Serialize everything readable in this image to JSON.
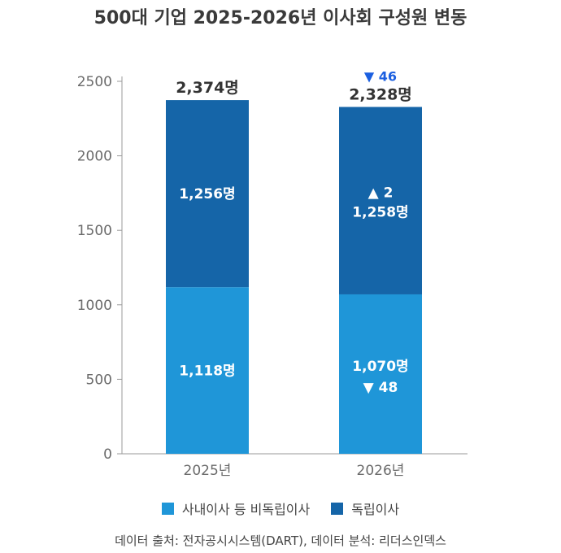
{
  "title": "500대 기업 2025-2026년 이사회 구성원 변동",
  "colors": {
    "inside": "#1f96d8",
    "independent": "#1565a8",
    "axis": "#9a9a9a",
    "delta": "#1b5fe0"
  },
  "chart_data": {
    "type": "bar",
    "stacked": true,
    "categories": [
      "2025년",
      "2026년"
    ],
    "series": [
      {
        "name": "사내이사 등 비독립이사",
        "values": [
          1118,
          1070
        ],
        "labels": [
          "1,118명",
          "1,070명"
        ],
        "deltas": [
          "",
          "▼ 48"
        ],
        "color": "#1f96d8"
      },
      {
        "name": "독립이사",
        "values": [
          1256,
          1258
        ],
        "labels": [
          "1,256명",
          "1,258명"
        ],
        "deltas": [
          "",
          "▲ 2"
        ],
        "color": "#1565a8"
      }
    ],
    "totals": [
      2374,
      2328
    ],
    "total_labels": [
      "2,374명",
      "2,328명"
    ],
    "total_deltas": [
      "",
      "▼ 46"
    ],
    "ylim": [
      0,
      2500
    ],
    "yticks": [
      0,
      500,
      1000,
      1500,
      2000,
      2500
    ],
    "legend_position": "bottom",
    "grid": false
  },
  "legend": {
    "inside_label": "사내이사 등 비독립이사",
    "independent_label": "독립이사"
  },
  "source": "데이터 출처: 전자공시시스템(DART), 데이터 분석: 리더스인덱스"
}
